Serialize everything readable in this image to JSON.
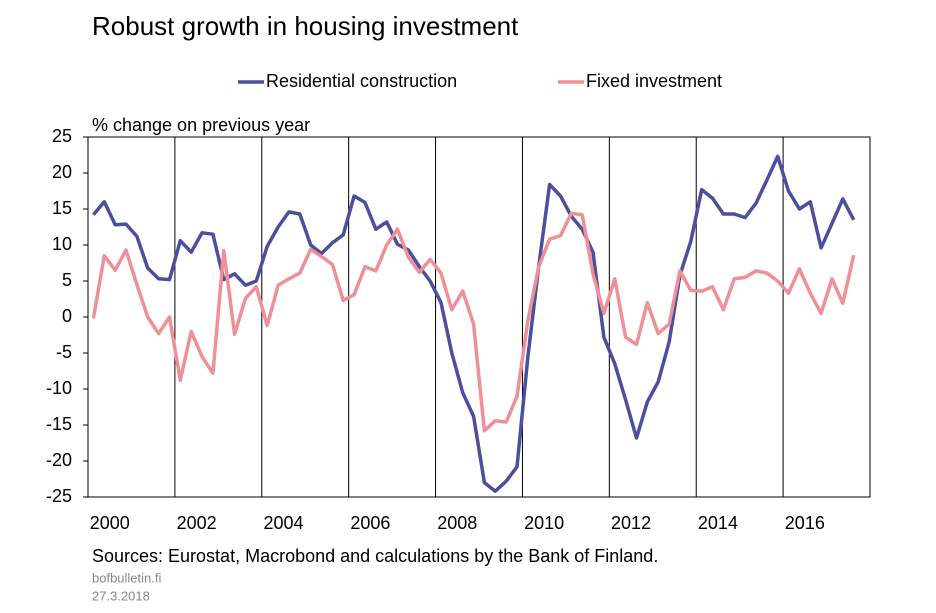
{
  "chart_data": {
    "type": "line",
    "title": "Robust growth in housing investment",
    "y_label": "% change on previous year",
    "source": "Sources: Eurostat, Macrobond and calculations by the Bank of Finland.",
    "footer": [
      "bofbulletin.fi",
      "27.3.2018"
    ],
    "x": [
      2000.125,
      2000.375,
      2000.625,
      2000.875,
      2001.125,
      2001.375,
      2001.625,
      2001.875,
      2002.125,
      2002.375,
      2002.625,
      2002.875,
      2003.125,
      2003.375,
      2003.625,
      2003.875,
      2004.125,
      2004.375,
      2004.625,
      2004.875,
      2005.125,
      2005.375,
      2005.625,
      2005.875,
      2006.125,
      2006.375,
      2006.625,
      2006.875,
      2007.125,
      2007.375,
      2007.625,
      2007.875,
      2008.125,
      2008.375,
      2008.625,
      2008.875,
      2009.125,
      2009.375,
      2009.625,
      2009.875,
      2010.125,
      2010.375,
      2010.625,
      2010.875,
      2011.125,
      2011.375,
      2011.625,
      2011.875,
      2012.125,
      2012.375,
      2012.625,
      2012.875,
      2013.125,
      2013.375,
      2013.625,
      2013.875,
      2014.125,
      2014.375,
      2014.625,
      2014.875,
      2015.125,
      2015.375,
      2015.625,
      2015.875,
      2016.125,
      2016.375,
      2016.625,
      2016.875,
      2017.125,
      2017.375,
      2017.625
    ],
    "series": [
      {
        "name": "Residential construction",
        "color": "#4a4f9e",
        "values": [
          14.2,
          16.0,
          12.8,
          12.9,
          11.2,
          6.8,
          5.3,
          5.2,
          10.6,
          9.0,
          11.7,
          11.5,
          5.2,
          6.0,
          4.4,
          5.0,
          9.8,
          12.5,
          14.6,
          14.3,
          10.0,
          8.8,
          10.3,
          11.4,
          16.8,
          15.9,
          12.2,
          13.2,
          10.1,
          9.3,
          7.0,
          5.0,
          2.0,
          -5.0,
          -10.5,
          -13.8,
          -23.0,
          -24.2,
          -22.8,
          -20.8,
          -5.5,
          7.0,
          18.4,
          16.8,
          14.0,
          12.2,
          9.0,
          -2.8,
          -6.5,
          -11.5,
          -16.8,
          -11.8,
          -9.0,
          -3.5,
          5.8,
          10.5,
          17.7,
          16.5,
          14.3,
          14.3,
          13.8,
          15.8,
          19.0,
          22.3,
          17.5,
          15.0,
          16.0,
          9.6,
          13.0,
          16.4,
          13.5
        ]
      },
      {
        "name": "Fixed investment",
        "color": "#ef8f96",
        "values": [
          -0.2,
          8.5,
          6.5,
          9.3,
          4.5,
          0.0,
          -2.3,
          0.0,
          -8.8,
          -2.0,
          -5.5,
          -7.8,
          9.2,
          -2.4,
          2.6,
          4.2,
          -1.2,
          4.4,
          5.3,
          6.1,
          9.4,
          8.4,
          7.3,
          2.3,
          3.1,
          7.0,
          6.4,
          10.0,
          12.2,
          8.3,
          6.2,
          8.0,
          6.1,
          1.0,
          3.6,
          -1.0,
          -15.8,
          -14.4,
          -14.6,
          -11.0,
          -0.5,
          7.0,
          10.8,
          11.3,
          14.4,
          14.2,
          6.0,
          0.5,
          5.3,
          -2.8,
          -3.8,
          2.0,
          -2.3,
          -1.0,
          6.4,
          3.7,
          3.6,
          4.2,
          1.0,
          5.3,
          5.5,
          6.4,
          6.1,
          5.0,
          3.3,
          6.7,
          3.3,
          0.5,
          5.3,
          1.9,
          8.6
        ]
      }
    ],
    "xlim": [
      2000,
      2018
    ],
    "xticks": [
      2000,
      2002,
      2004,
      2006,
      2008,
      2010,
      2012,
      2014,
      2016
    ],
    "ylim": [
      -25,
      25
    ],
    "yticks": [
      -25,
      -20,
      -15,
      -10,
      -5,
      0,
      5,
      10,
      15,
      20,
      25
    ],
    "grid": "x",
    "legend": "top"
  }
}
